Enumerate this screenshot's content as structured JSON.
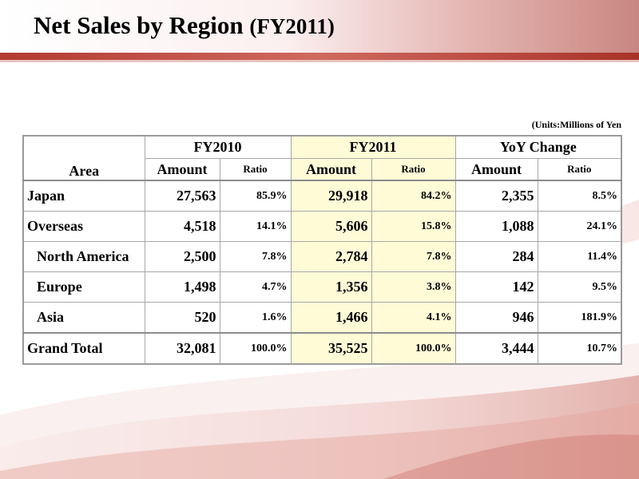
{
  "slide": {
    "title_main": "Net Sales by Region ",
    "title_sub": "(FY2011)",
    "units": "(Units:Millions of Yen",
    "accent_color": "#c0504d"
  },
  "table": {
    "area_header": "Area",
    "groups": [
      {
        "label": "FY2010",
        "amount_label": "Amount",
        "ratio_label": "Ratio"
      },
      {
        "label": "FY2011",
        "amount_label": "Amount",
        "ratio_label": "Ratio"
      },
      {
        "label": "YoY Change",
        "amount_label": "Amount",
        "ratio_label": "Ratio"
      }
    ],
    "rows": [
      {
        "area": "Japan",
        "fy2010_amount": "27,563",
        "fy2010_ratio": "85.9%",
        "fy2011_amount": "29,918",
        "fy2011_ratio": "84.2%",
        "yoy_amount": "2,355",
        "yoy_ratio": "8.5%"
      },
      {
        "area": "Overseas",
        "fy2010_amount": "4,518",
        "fy2010_ratio": "14.1%",
        "fy2011_amount": "5,606",
        "fy2011_ratio": "15.8%",
        "yoy_amount": "1,088",
        "yoy_ratio": "24.1%"
      },
      {
        "area": "North America",
        "fy2010_amount": "2,500",
        "fy2010_ratio": "7.8%",
        "fy2011_amount": "2,784",
        "fy2011_ratio": "7.8%",
        "yoy_amount": "284",
        "yoy_ratio": "11.4%"
      },
      {
        "area": "Europe",
        "fy2010_amount": "1,498",
        "fy2010_ratio": "4.7%",
        "fy2011_amount": "1,356",
        "fy2011_ratio": "3.8%",
        "yoy_amount": "142",
        "yoy_ratio": "9.5%"
      },
      {
        "area": "Asia",
        "fy2010_amount": "520",
        "fy2010_ratio": "1.6%",
        "fy2011_amount": "1,466",
        "fy2011_ratio": "4.1%",
        "yoy_amount": "946",
        "yoy_ratio": "181.9%"
      },
      {
        "area": "Grand Total",
        "fy2010_amount": "32,081",
        "fy2010_ratio": "100.0%",
        "fy2011_amount": "35,525",
        "fy2011_ratio": "100.0%",
        "yoy_amount": "3,444",
        "yoy_ratio": "10.7%"
      }
    ]
  }
}
